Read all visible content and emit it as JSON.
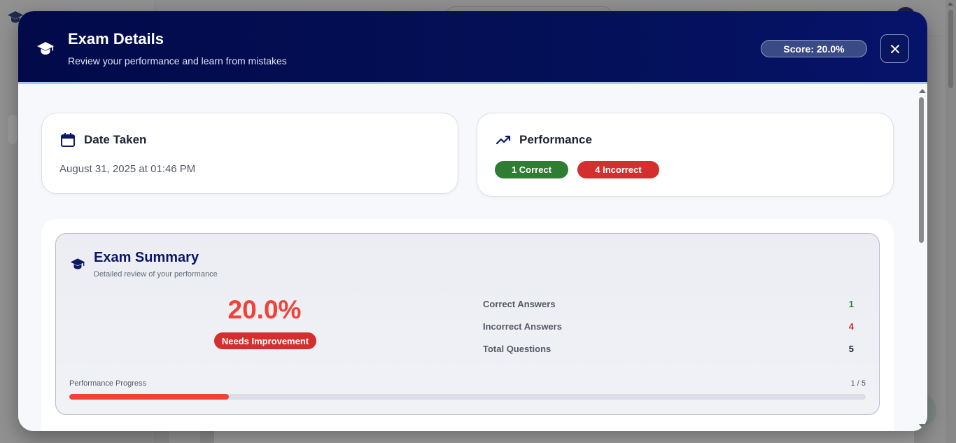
{
  "modal": {
    "title": "Exam Details",
    "subtitle": "Review your performance and learn from mistakes",
    "score_badge": "Score: 20.0%"
  },
  "date_card": {
    "title": "Date Taken",
    "value": "August 31, 2025 at 01:46 PM"
  },
  "performance_card": {
    "title": "Performance",
    "correct_badge": "1 Correct",
    "incorrect_badge": "4 Incorrect"
  },
  "summary": {
    "title": "Exam Summary",
    "subtitle": "Detailed review of your performance",
    "percentage": "20.0%",
    "status_badge": "Needs Improvement",
    "stats": [
      {
        "label": "Correct Answers",
        "value": "1"
      },
      {
        "label": "Incorrect Answers",
        "value": "4"
      },
      {
        "label": "Total Questions",
        "value": "5"
      }
    ],
    "progress_label": "Performance Progress",
    "progress_count": "1 / 5",
    "progress_fraction": 0.2
  },
  "colors": {
    "header_bg": "#020a4a",
    "accent_red": "#f04238",
    "correct_green": "#2e7d32",
    "incorrect_red": "#d32f2f"
  },
  "icons": {
    "header": "graduation-cap-icon",
    "close": "close-icon",
    "date": "calendar-icon",
    "performance": "trending-up-icon",
    "summary": "graduation-cap-icon"
  }
}
